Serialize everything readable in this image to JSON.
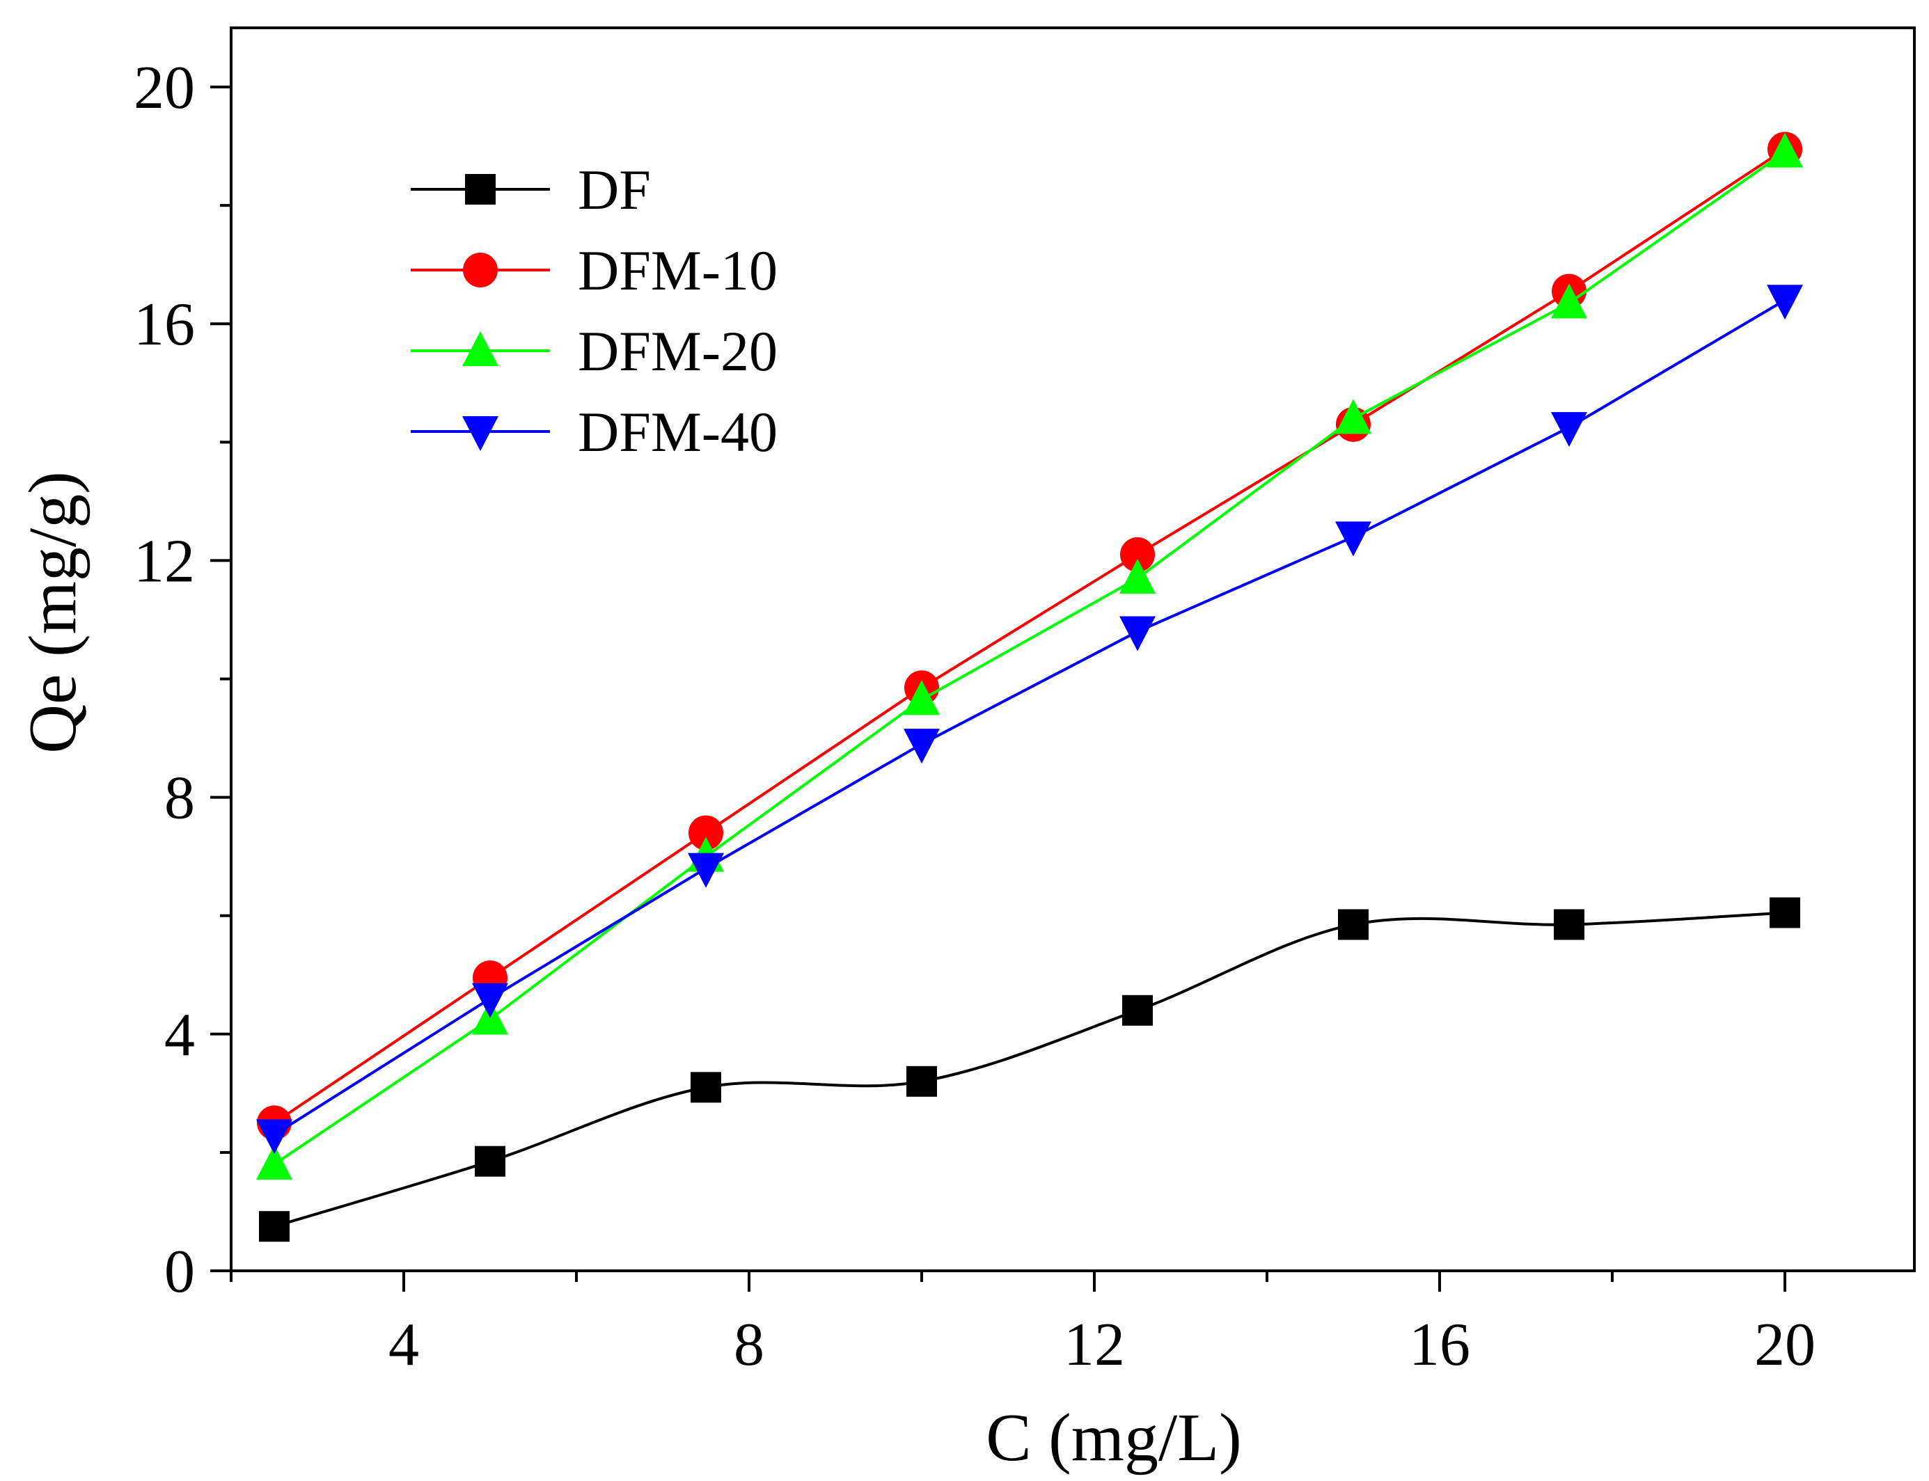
{
  "chart_data": {
    "type": "line",
    "title": "",
    "xlabel": "C (mg/L)",
    "ylabel": "Qe (mg/g)",
    "xlim": [
      2,
      21.5
    ],
    "ylim": [
      0,
      21
    ],
    "x_ticks": [
      4,
      8,
      12,
      16,
      20
    ],
    "y_ticks": [
      0,
      4,
      8,
      12,
      16,
      20
    ],
    "x_minor_ticks": [
      2,
      6,
      10,
      14,
      18
    ],
    "y_minor_ticks": [
      2,
      6,
      10,
      14,
      18
    ],
    "grid": false,
    "legend_position": "top-left",
    "x": [
      2.5,
      5,
      7.5,
      10,
      12.5,
      15,
      17.5,
      20
    ],
    "series": [
      {
        "name": "DF",
        "color": "#000000",
        "marker": "square",
        "smooth": true,
        "values": [
          0.75,
          1.85,
          3.1,
          3.2,
          4.4,
          5.85,
          5.85,
          6.05
        ]
      },
      {
        "name": "DFM-10",
        "color": "#ff0000",
        "marker": "circle",
        "smooth": false,
        "values": [
          2.5,
          4.95,
          7.4,
          9.85,
          12.1,
          14.3,
          16.55,
          18.95
        ]
      },
      {
        "name": "DFM-20",
        "color": "#00ff00",
        "marker": "triangle-up",
        "smooth": false,
        "values": [
          1.8,
          4.25,
          7.0,
          9.65,
          11.7,
          14.4,
          16.35,
          18.9
        ]
      },
      {
        "name": "DFM-40",
        "color": "#0000ff",
        "marker": "triangle-down",
        "smooth": false,
        "values": [
          2.3,
          4.6,
          6.8,
          8.9,
          10.8,
          12.4,
          14.25,
          16.4
        ]
      }
    ]
  }
}
